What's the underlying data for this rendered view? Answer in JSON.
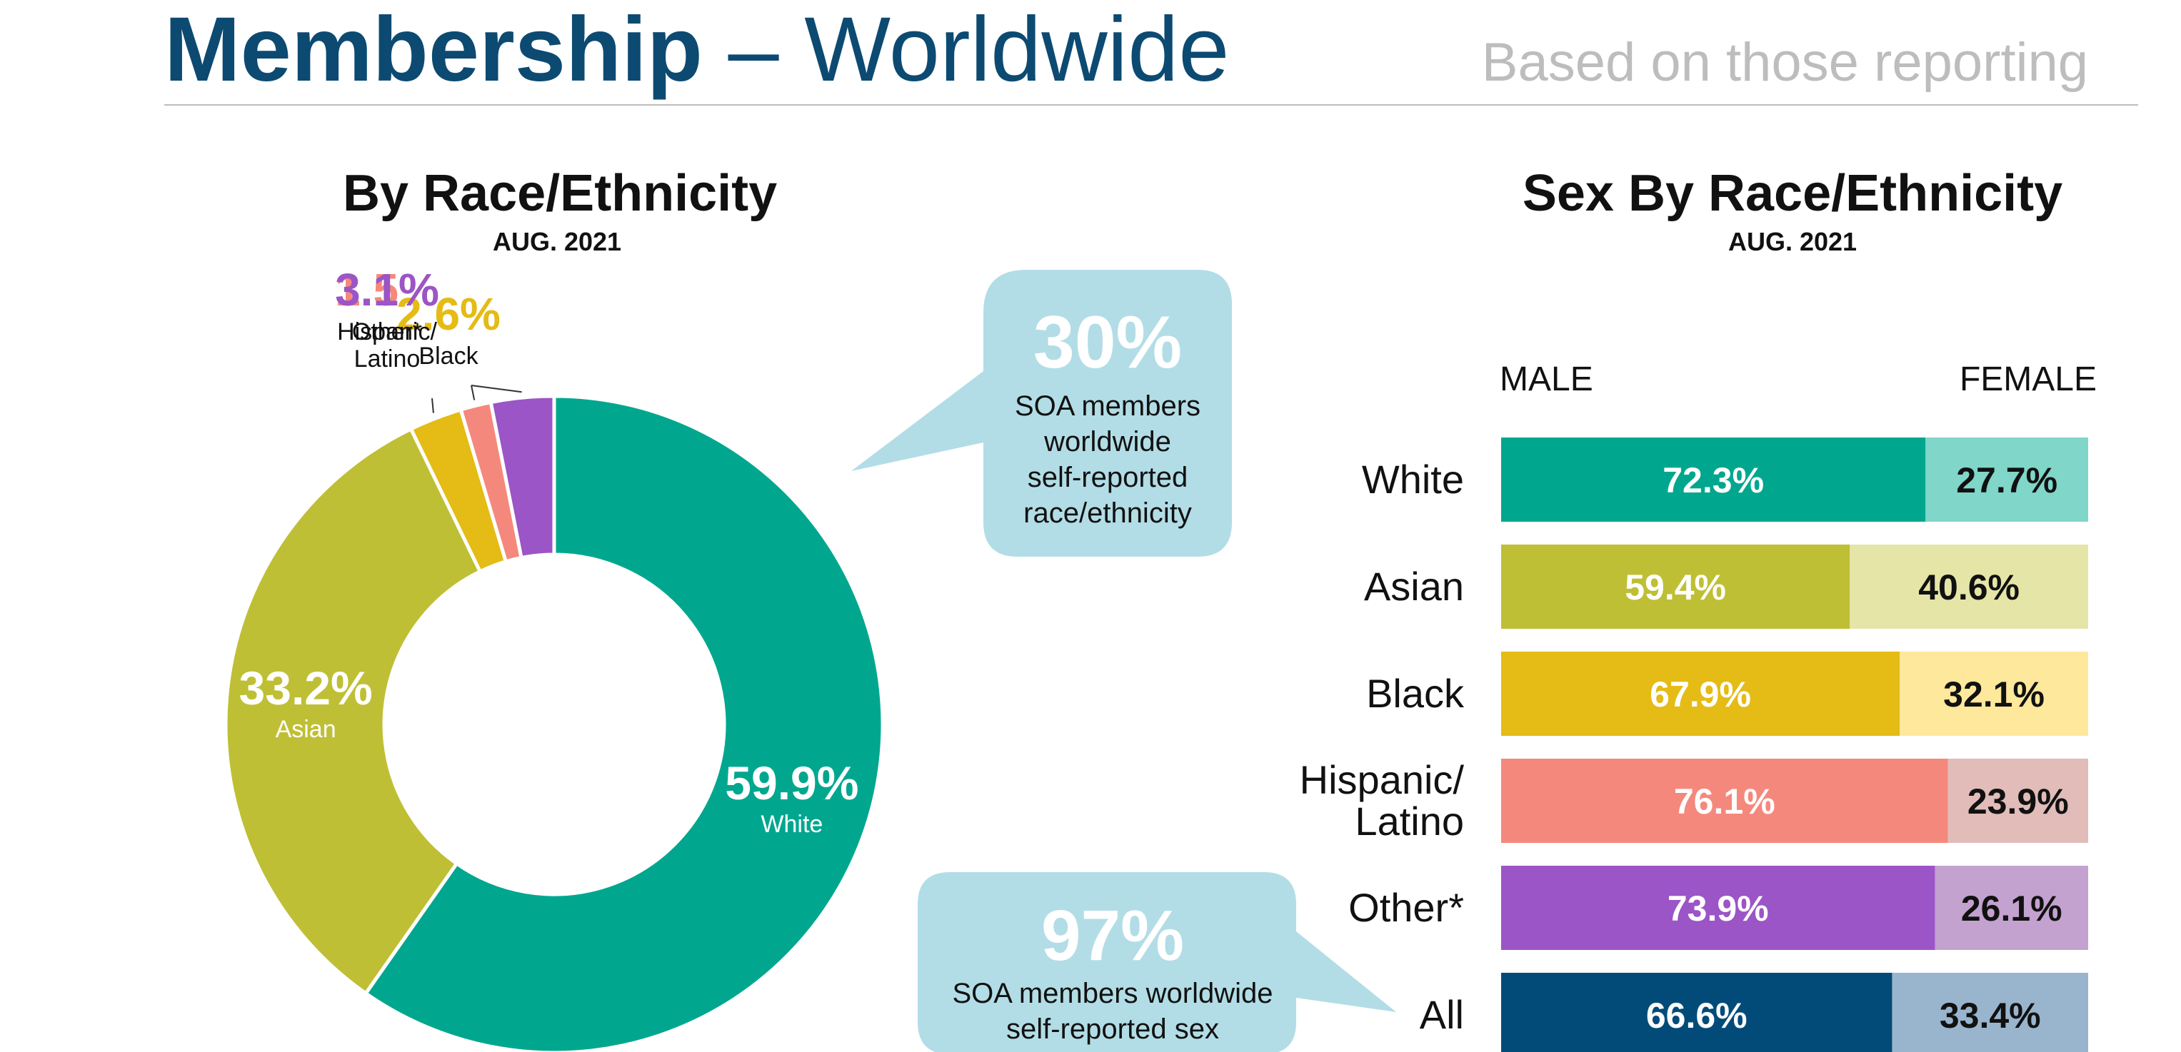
{
  "header": {
    "title_bold": "Membership",
    "title_rest": " – Worldwide",
    "subtitle": "Based on those reporting"
  },
  "donut_section": {
    "title": "By Race/Ethnicity",
    "date": "AUG. 2021"
  },
  "bar_section": {
    "title": "Sex By Race/Ethnicity",
    "date": "AUG. 2021",
    "male_label": "MALE",
    "female_label": "FEMALE"
  },
  "callouts": [
    {
      "value": "30%",
      "lines": [
        "SOA members",
        "worldwide",
        "self-reported",
        "race/ethnicity"
      ]
    },
    {
      "value": "97%",
      "lines": [
        "SOA members worldwide",
        "self-reported sex"
      ]
    }
  ],
  "chart_data": [
    {
      "type": "pie",
      "title": "By Race/Ethnicity",
      "subtitle": "AUG. 2021",
      "categories": [
        "White",
        "Asian",
        "Black",
        "Hispanic/ Latino",
        "Other*"
      ],
      "values": [
        59.9,
        33.2,
        2.6,
        1.5,
        3.1
      ],
      "value_labels": [
        "59.9%",
        "33.2%",
        "2.6%",
        "1.5%",
        "3.1%"
      ],
      "colors": [
        "#00a78e",
        "#bfbf35",
        "#e5bb15",
        "#f5887c",
        "#9b55c6"
      ]
    },
    {
      "type": "bar",
      "orientation": "horizontal",
      "stacked": true,
      "title": "Sex By Race/Ethnicity",
      "subtitle": "AUG. 2021",
      "categories": [
        "White",
        "Asian",
        "Black",
        "Hispanic/ Latino",
        "Other*",
        "All"
      ],
      "series": [
        {
          "name": "MALE",
          "values": [
            72.3,
            59.4,
            67.9,
            76.1,
            73.9,
            66.6
          ]
        },
        {
          "name": "FEMALE",
          "values": [
            27.7,
            40.6,
            32.1,
            23.9,
            26.1,
            33.4
          ]
        }
      ],
      "male_colors": [
        "#00a78e",
        "#bfbf35",
        "#e5bb15",
        "#f5887c",
        "#9b55c6",
        "#024b79"
      ],
      "female_colors": [
        "#80d6c9",
        "#e5e5a7",
        "#fee89b",
        "#e1bcb9",
        "#c3a2cf",
        "#99b5cd"
      ],
      "xlim": [
        0,
        100
      ]
    }
  ]
}
